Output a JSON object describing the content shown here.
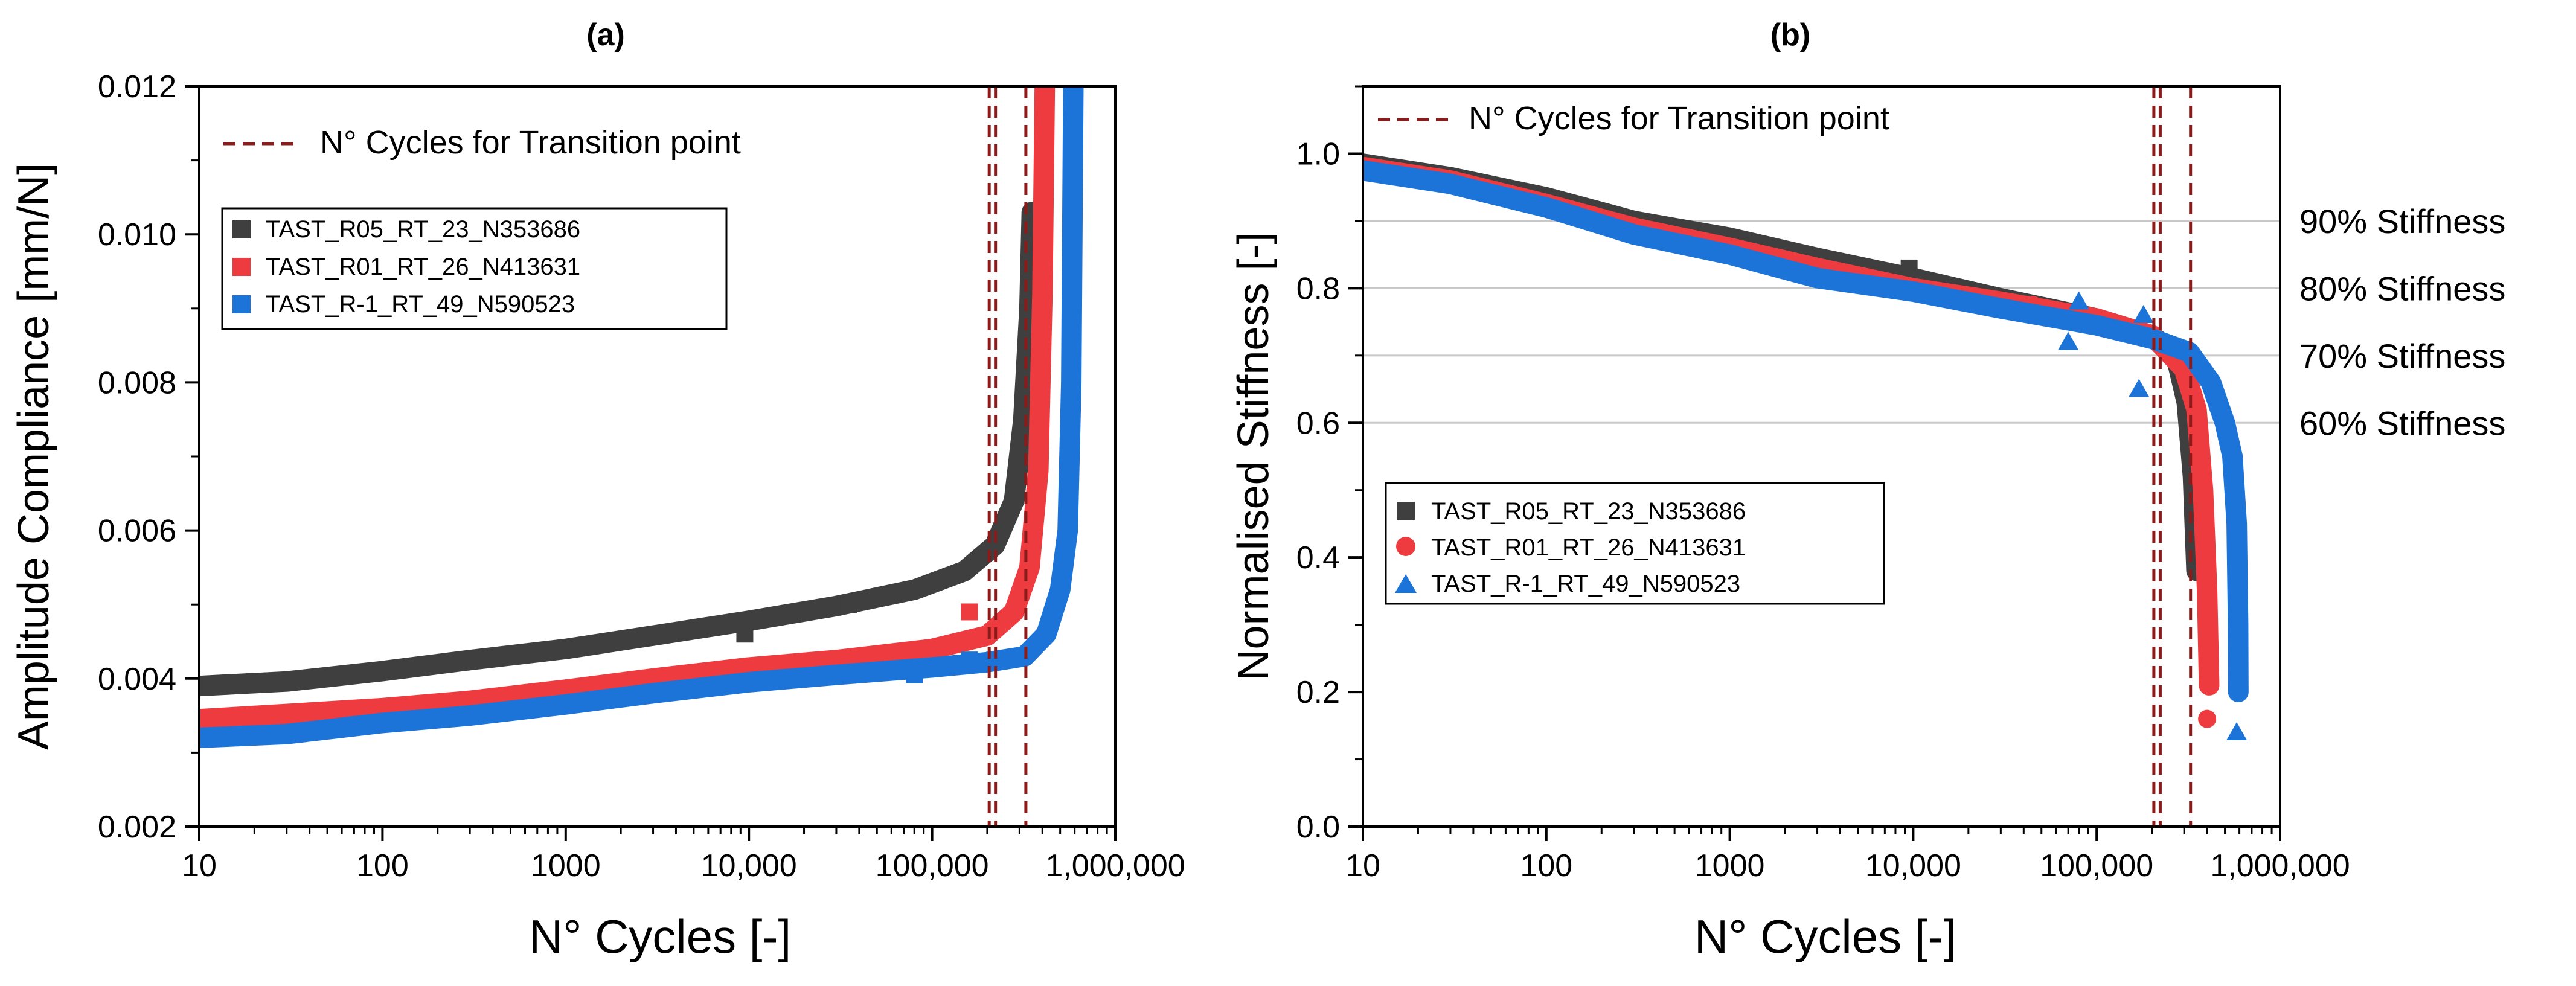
{
  "colors": {
    "dark": "#3f3f3f",
    "red": "#ee3b3f",
    "blue": "#1c74d8",
    "transition": "#8b1a1a",
    "grid": "#c8c8c8"
  },
  "chart_data": [
    {
      "panel": "(a)",
      "type": "line",
      "xscale": "log",
      "xlabel": "N° Cycles [-]",
      "ylabel": "Amplitude Compliance [mm/N]",
      "xlim": [
        10,
        1000000
      ],
      "ylim": [
        0.002,
        0.012
      ],
      "xticks": [
        "10",
        "100",
        "1000",
        "10,000",
        "100,000",
        "1,000,000"
      ],
      "yticks": [
        "0.002",
        "0.004",
        "0.006",
        "0.008",
        "0.010",
        "0.012"
      ],
      "transition_label": "N° Cycles for Transition point",
      "transition_lines": [
        205000,
        222000,
        325000
      ],
      "legend_placement": "upper-left",
      "series": [
        {
          "name": "TAST_R05_RT_23_N353686",
          "color": "dark",
          "marker": "square",
          "points": [
            [
              10,
              0.0039
            ],
            [
              30,
              0.00396
            ],
            [
              100,
              0.0041
            ],
            [
              300,
              0.00425
            ],
            [
              1000,
              0.0044
            ],
            [
              3000,
              0.00458
            ],
            [
              10000,
              0.00478
            ],
            [
              30000,
              0.00498
            ],
            [
              80000,
              0.0052
            ],
            [
              150000,
              0.00545
            ],
            [
              220000,
              0.0058
            ],
            [
              280000,
              0.0064
            ],
            [
              315000,
              0.0075
            ],
            [
              340000,
              0.009
            ],
            [
              350000,
              0.0103
            ]
          ],
          "outliers": [
            [
              9500,
              0.0046
            ],
            [
              20000,
              0.0049
            ],
            [
              35000,
              0.005
            ]
          ]
        },
        {
          "name": "TAST_R01_RT_26_N413631",
          "color": "red",
          "marker": "square",
          "points": [
            [
              10,
              0.00345
            ],
            [
              30,
              0.00352
            ],
            [
              100,
              0.0036
            ],
            [
              300,
              0.0037
            ],
            [
              1000,
              0.00385
            ],
            [
              3000,
              0.004
            ],
            [
              10000,
              0.00415
            ],
            [
              30000,
              0.00425
            ],
            [
              100000,
              0.0044
            ],
            [
              200000,
              0.00458
            ],
            [
              280000,
              0.0049
            ],
            [
              340000,
              0.0055
            ],
            [
              380000,
              0.0068
            ],
            [
              400000,
              0.0092
            ],
            [
              412000,
              0.012
            ]
          ],
          "outliers": [
            [
              160000,
              0.0049
            ]
          ]
        },
        {
          "name": "TAST_R-1_RT_49_N590523",
          "color": "blue",
          "marker": "square",
          "points": [
            [
              10,
              0.0032
            ],
            [
              30,
              0.00325
            ],
            [
              100,
              0.0034
            ],
            [
              300,
              0.0035
            ],
            [
              1000,
              0.00365
            ],
            [
              3000,
              0.0038
            ],
            [
              10000,
              0.00395
            ],
            [
              30000,
              0.00405
            ],
            [
              100000,
              0.00415
            ],
            [
              200000,
              0.00422
            ],
            [
              320000,
              0.0043
            ],
            [
              420000,
              0.0046
            ],
            [
              500000,
              0.0052
            ],
            [
              550000,
              0.006
            ],
            [
              575000,
              0.008
            ],
            [
              590000,
              0.012
            ]
          ],
          "outliers": [
            [
              80000,
              0.00405
            ],
            [
              160000,
              0.00425
            ],
            [
              220000,
              0.00425
            ]
          ]
        }
      ]
    },
    {
      "panel": "(b)",
      "type": "scatter",
      "xscale": "log",
      "xlabel": "N° Cycles [-]",
      "ylabel": "Normalised Stiffness [-]",
      "xlim": [
        10,
        1000000
      ],
      "ylim": [
        0.0,
        1.1
      ],
      "xticks": [
        "10",
        "100",
        "1000",
        "10,000",
        "100,000",
        "1,000,000"
      ],
      "yticks": [
        "0.0",
        "0.2",
        "0.4",
        "0.6",
        "0.8",
        "1.0"
      ],
      "transition_label": "N° Cycles for Transition point",
      "transition_lines": [
        205000,
        222000,
        325000
      ],
      "reference_lines": [
        {
          "value": 0.9,
          "label": "90% Stiffness"
        },
        {
          "value": 0.8,
          "label": "80% Stiffness"
        },
        {
          "value": 0.7,
          "label": "70% Stiffness"
        },
        {
          "value": 0.6,
          "label": "60% Stiffness"
        }
      ],
      "legend_placement": "lower-left",
      "series": [
        {
          "name": "TAST_R05_RT_23_N353686",
          "color": "dark",
          "marker": "square",
          "points": [
            [
              10,
              0.985
            ],
            [
              30,
              0.965
            ],
            [
              100,
              0.935
            ],
            [
              300,
              0.9
            ],
            [
              1000,
              0.875
            ],
            [
              3000,
              0.845
            ],
            [
              10000,
              0.815
            ],
            [
              30000,
              0.785
            ],
            [
              100000,
              0.755
            ],
            [
              200000,
              0.73
            ],
            [
              270000,
              0.7
            ],
            [
              310000,
              0.63
            ],
            [
              335000,
              0.52
            ],
            [
              350000,
              0.38
            ]
          ],
          "outliers": [
            [
              9500,
              0.83
            ]
          ]
        },
        {
          "name": "TAST_R01_RT_26_N413631",
          "color": "red",
          "marker": "circle",
          "points": [
            [
              10,
              0.98
            ],
            [
              30,
              0.96
            ],
            [
              100,
              0.925
            ],
            [
              300,
              0.89
            ],
            [
              1000,
              0.86
            ],
            [
              3000,
              0.83
            ],
            [
              10000,
              0.8
            ],
            [
              30000,
              0.78
            ],
            [
              100000,
              0.755
            ],
            [
              200000,
              0.73
            ],
            [
              300000,
              0.68
            ],
            [
              350000,
              0.62
            ],
            [
              380000,
              0.5
            ],
            [
              400000,
              0.35
            ],
            [
              410000,
              0.21
            ]
          ],
          "outliers": [
            [
              45000,
              0.775
            ],
            [
              400000,
              0.16
            ]
          ]
        },
        {
          "name": "TAST_R-1_RT_49_N590523",
          "color": "blue",
          "marker": "triangle",
          "points": [
            [
              10,
              0.975
            ],
            [
              30,
              0.955
            ],
            [
              100,
              0.92
            ],
            [
              300,
              0.88
            ],
            [
              1000,
              0.85
            ],
            [
              3000,
              0.815
            ],
            [
              10000,
              0.795
            ],
            [
              30000,
              0.77
            ],
            [
              100000,
              0.745
            ],
            [
              200000,
              0.725
            ],
            [
              320000,
              0.705
            ],
            [
              420000,
              0.66
            ],
            [
              500000,
              0.6
            ],
            [
              550000,
              0.55
            ],
            [
              580000,
              0.45
            ],
            [
              590000,
              0.3
            ],
            [
              592000,
              0.2
            ]
          ],
          "outliers": [
            [
              80000,
              0.78
            ],
            [
              70000,
              0.72
            ],
            [
              180000,
              0.76
            ],
            [
              170000,
              0.65
            ],
            [
              580000,
              0.14
            ]
          ]
        }
      ]
    }
  ]
}
